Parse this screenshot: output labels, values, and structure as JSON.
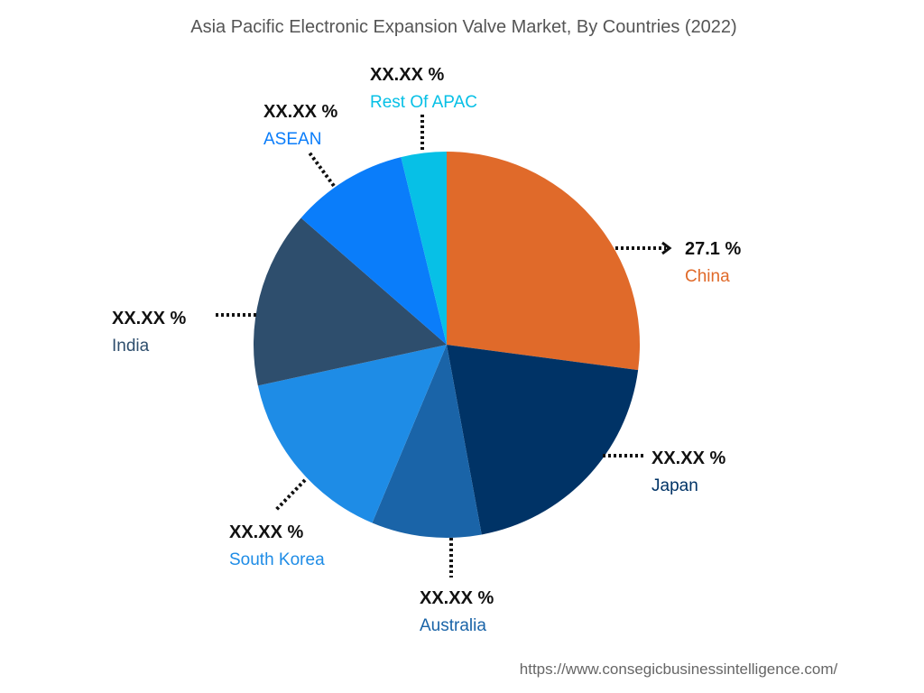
{
  "source_url": "https://www.consegicbusinessintelligence.com/",
  "chart_data": {
    "type": "pie",
    "title": "Asia Pacific Electronic Expansion Valve Market, By Countries (2022)",
    "slices": [
      {
        "label": "China",
        "value_label": "27.1 %",
        "value": 27.1,
        "color": "#E06A2A"
      },
      {
        "label": "Japan",
        "value_label": "XX.XX %",
        "value": 20.0,
        "color": "#003366"
      },
      {
        "label": "Australia",
        "value_label": "XX.XX %",
        "value": 9.2,
        "color": "#1A64A8"
      },
      {
        "label": "South Korea",
        "value_label": "XX.XX %",
        "value": 15.3,
        "color": "#1E8CE6"
      },
      {
        "label": "India",
        "value_label": "XX.XX %",
        "value": 14.8,
        "color": "#2E4E6D"
      },
      {
        "label": "ASEAN",
        "value_label": "XX.XX %",
        "value": 9.8,
        "color": "#0A7DFA"
      },
      {
        "label": "Rest Of APAC",
        "value_label": "XX.XX %",
        "value": 3.8,
        "color": "#07C0E6"
      }
    ]
  }
}
